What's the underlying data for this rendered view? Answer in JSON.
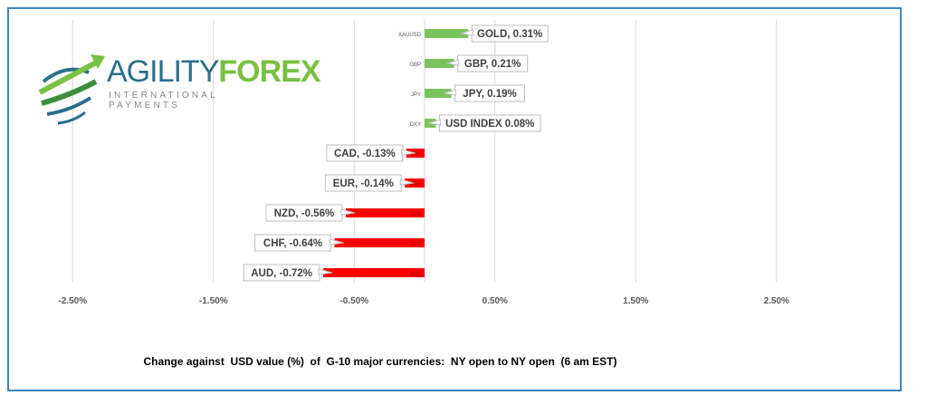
{
  "logo": {
    "word1": "AGILITY",
    "word2": "FOREX",
    "tagline": "INTERNATIONAL PAYMENTS"
  },
  "caption": "Change against  USD value (%)  of  G-10 major currencies:  NY open to NY open  (6 am EST)",
  "chart_data": {
    "type": "bar",
    "orientation": "horizontal",
    "categories": [
      "XAUUSD",
      "GBP",
      "JPY",
      "DXY",
      "CAD",
      "EUR",
      "NZD",
      "CHF",
      "AUD"
    ],
    "values": [
      0.31,
      0.21,
      0.19,
      0.08,
      -0.13,
      -0.14,
      -0.56,
      -0.64,
      -0.72
    ],
    "data_labels": [
      "GOLD, 0.31%",
      "GBP, 0.21%",
      "JPY, 0.19%",
      "USD INDEX 0.08%",
      "CAD, -0.13%",
      "EUR, -0.14%",
      "NZD, -0.56%",
      "CHF, -0.64%",
      "AUD, -0.72%"
    ],
    "xticks": [
      -2.5,
      -1.5,
      -0.5,
      0.5,
      1.5,
      2.5
    ],
    "xtick_labels": [
      "-2.50%",
      "-1.50%",
      "-0.50%",
      "0.50%",
      "1.50%",
      "2.50%"
    ],
    "xlim": [
      -2.75,
      3.45
    ],
    "grid": "vertical",
    "colors": {
      "positive": "#7ac35c",
      "negative": "#ff0000",
      "frame": "#3a86c8"
    }
  }
}
